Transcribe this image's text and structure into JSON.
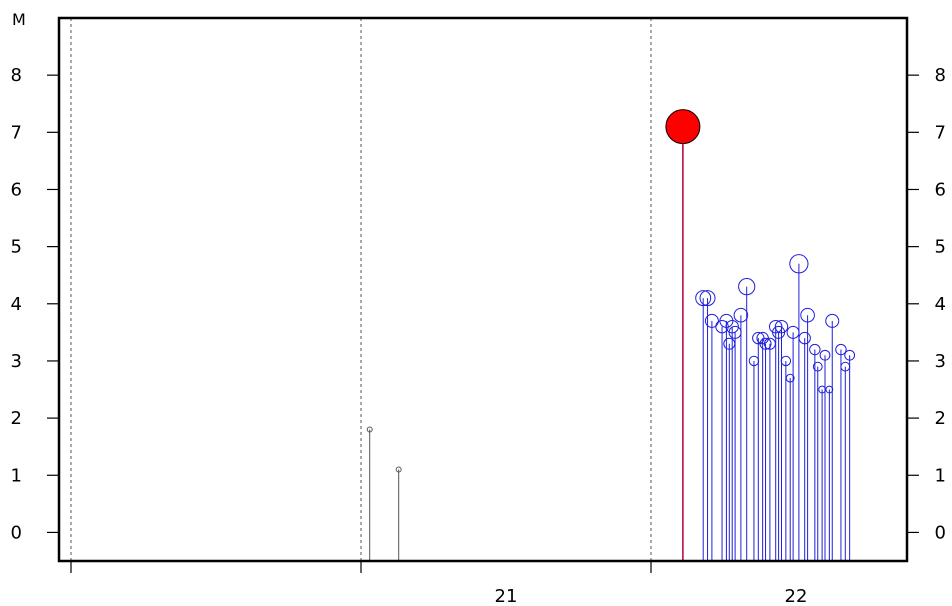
{
  "chart_data": {
    "type": "stem",
    "y_unit_label": "M",
    "ylim": [
      -0.5,
      9
    ],
    "y_ticks": [
      0,
      1,
      2,
      3,
      4,
      5,
      6,
      7,
      8
    ],
    "x_divisions": [
      {
        "label": ""
      },
      {
        "label": "21"
      },
      {
        "label": "22"
      },
      {
        "label": ""
      }
    ],
    "grid": "vertical dashed lines at day boundaries",
    "colors": {
      "main_event_fill": "#ff0000",
      "main_stem": "#b0003a",
      "aftershock": "#1f1fdc",
      "foreshock": "#555555",
      "frame": "#000000",
      "grid": "#555555"
    },
    "series": [
      {
        "role": "foreshocks",
        "points": [
          {
            "x": 21.03,
            "y": 1.8
          },
          {
            "x": 21.13,
            "y": 1.1
          }
        ]
      },
      {
        "role": "mainshock",
        "points": [
          {
            "x": 22.11,
            "y": 7.1
          }
        ]
      },
      {
        "role": "aftershocks",
        "points": [
          {
            "x": 22.18,
            "y": 4.1
          },
          {
            "x": 22.195,
            "y": 4.1
          },
          {
            "x": 22.21,
            "y": 3.7
          },
          {
            "x": 22.245,
            "y": 3.6
          },
          {
            "x": 22.26,
            "y": 3.7
          },
          {
            "x": 22.27,
            "y": 3.3
          },
          {
            "x": 22.28,
            "y": 3.6
          },
          {
            "x": 22.29,
            "y": 3.5
          },
          {
            "x": 22.31,
            "y": 3.8
          },
          {
            "x": 22.33,
            "y": 4.3
          },
          {
            "x": 22.355,
            "y": 3.0
          },
          {
            "x": 22.37,
            "y": 3.4
          },
          {
            "x": 22.385,
            "y": 3.4
          },
          {
            "x": 22.395,
            "y": 3.3
          },
          {
            "x": 22.41,
            "y": 3.3
          },
          {
            "x": 22.43,
            "y": 3.6
          },
          {
            "x": 22.44,
            "y": 3.5
          },
          {
            "x": 22.45,
            "y": 3.6
          },
          {
            "x": 22.465,
            "y": 3.0
          },
          {
            "x": 22.48,
            "y": 2.7
          },
          {
            "x": 22.49,
            "y": 3.5
          },
          {
            "x": 22.51,
            "y": 4.7
          },
          {
            "x": 22.53,
            "y": 3.4
          },
          {
            "x": 22.54,
            "y": 3.8
          },
          {
            "x": 22.565,
            "y": 3.2
          },
          {
            "x": 22.575,
            "y": 2.9
          },
          {
            "x": 22.59,
            "y": 2.5
          },
          {
            "x": 22.6,
            "y": 3.1
          },
          {
            "x": 22.615,
            "y": 2.5
          },
          {
            "x": 22.625,
            "y": 3.7
          },
          {
            "x": 22.655,
            "y": 3.2
          },
          {
            "x": 22.67,
            "y": 2.9
          },
          {
            "x": 22.685,
            "y": 3.1
          }
        ]
      }
    ]
  }
}
